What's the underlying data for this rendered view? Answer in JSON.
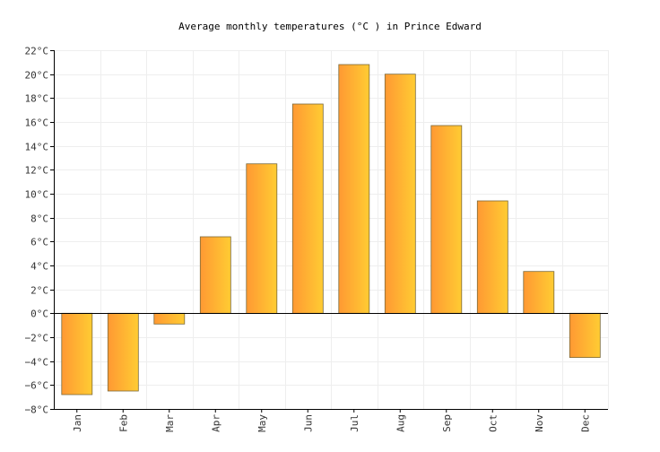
{
  "colors": {
    "bar_start": "#ff9933",
    "bar_end": "#ffcc33",
    "bar_stroke": "#7a6a3a",
    "grid": "#eeeeee",
    "axis": "#000000",
    "zero_line": "#000000"
  },
  "chart_data": {
    "type": "bar",
    "title": "Average monthly temperatures (°C ) in Prince Edward",
    "categories": [
      "Jan",
      "Feb",
      "Mar",
      "Apr",
      "May",
      "Jun",
      "Jul",
      "Aug",
      "Sep",
      "Oct",
      "Nov",
      "Dec"
    ],
    "values": [
      -6.8,
      -6.5,
      -0.9,
      6.4,
      12.5,
      17.5,
      20.8,
      20.0,
      15.7,
      9.4,
      3.5,
      -3.7
    ],
    "ylim": [
      -8,
      22
    ],
    "yticks": [
      -8,
      -6,
      -4,
      -2,
      0,
      2,
      4,
      6,
      8,
      10,
      12,
      14,
      16,
      18,
      20,
      22
    ],
    "ytick_labels": [
      "−8°C",
      "−6°C",
      "−4°C",
      "−2°C",
      "0°C",
      "2°C",
      "4°C",
      "6°C",
      "8°C",
      "10°C",
      "12°C",
      "14°C",
      "16°C",
      "18°C",
      "20°C",
      "22°C"
    ],
    "grid": true,
    "xlabel": "",
    "ylabel": ""
  }
}
